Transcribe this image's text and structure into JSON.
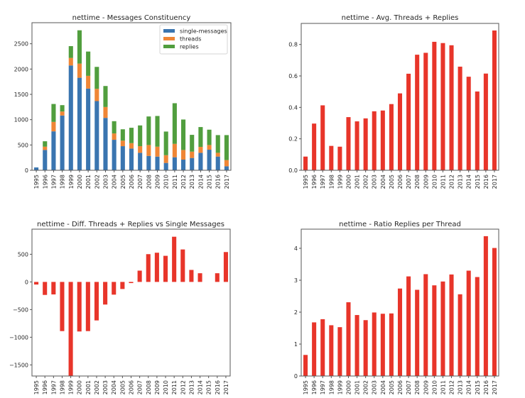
{
  "chart_data": [
    {
      "type": "bar",
      "stacked": true,
      "title": "nettime - Messages Constituency",
      "xlabel": "",
      "ylabel": "",
      "categories": [
        "1995",
        "1996",
        "1997",
        "1998",
        "1999",
        "2000",
        "2001",
        "2002",
        "2003",
        "2004",
        "2005",
        "2006",
        "2007",
        "2008",
        "2009",
        "2010",
        "2011",
        "2012",
        "2013",
        "2014",
        "2015",
        "2016",
        "2017"
      ],
      "series": [
        {
          "name": "single-messages",
          "color": "#3a75b0",
          "values": [
            56,
            401,
            769,
            1082,
            2071,
            1828,
            1614,
            1367,
            1035,
            602,
            476,
            429,
            345,
            284,
            270,
            145,
            257,
            210,
            243,
            345,
            406,
            271,
            79
          ]
        },
        {
          "name": "threads",
          "color": "#ef8636",
          "values": [
            0,
            65,
            187,
            79,
            149,
            280,
            252,
            242,
            215,
            126,
            110,
            107,
            131,
            215,
            196,
            153,
            265,
            191,
            125,
            117,
            93,
            74,
            122
          ]
        },
        {
          "name": "replies",
          "color": "#519e3e",
          "values": [
            0,
            107,
            354,
            126,
            233,
            658,
            480,
            434,
            415,
            242,
            224,
            304,
            410,
            564,
            607,
            467,
            803,
            602,
            332,
            392,
            303,
            350,
            494
          ]
        }
      ],
      "yticks": [
        0,
        500,
        1000,
        1500,
        2000,
        2500
      ],
      "ylim": [
        0,
        2916
      ],
      "legend": "top-right",
      "grid": false
    },
    {
      "type": "bar",
      "title": "nettime - Avg. Threads + Replies",
      "xlabel": "",
      "ylabel": "",
      "color": "#e8352a",
      "categories": [
        "1995",
        "1996",
        "1997",
        "1998",
        "1999",
        "2000",
        "2001",
        "2002",
        "2003",
        "2004",
        "2005",
        "2006",
        "2007",
        "2008",
        "2009",
        "2010",
        "2011",
        "2012",
        "2013",
        "2014",
        "2015",
        "2016",
        "2017"
      ],
      "values": [
        0.087,
        0.297,
        0.413,
        0.155,
        0.15,
        0.338,
        0.311,
        0.33,
        0.375,
        0.38,
        0.421,
        0.489,
        0.614,
        0.735,
        0.747,
        0.817,
        0.809,
        0.795,
        0.659,
        0.595,
        0.501,
        0.615,
        0.889
      ],
      "yticks": [
        0.0,
        0.2,
        0.4,
        0.6,
        0.8
      ],
      "ytick_labels": [
        "0.0",
        "0.2",
        "0.4",
        "0.6",
        "0.8"
      ],
      "ylim": [
        0,
        0.934
      ],
      "grid": false
    },
    {
      "type": "bar",
      "title": "nettime - Diff. Threads + Replies vs Single Messages",
      "xlabel": "",
      "ylabel": "",
      "color": "#e8352a",
      "categories": [
        "1995",
        "1996",
        "1997",
        "1998",
        "1999",
        "2000",
        "2001",
        "2002",
        "2003",
        "2004",
        "2005",
        "2006",
        "2007",
        "2008",
        "2009",
        "2010",
        "2011",
        "2012",
        "2013",
        "2014",
        "2015",
        "2016",
        "2017"
      ],
      "values": [
        -47,
        -235,
        -226,
        -889,
        -1750,
        -896,
        -889,
        -696,
        -409,
        -230,
        -128,
        -21,
        204,
        502,
        528,
        472,
        817,
        587,
        217,
        157,
        0,
        157,
        540
      ],
      "yticks": [
        -1500,
        -1000,
        -500,
        0,
        500
      ],
      "ytick_labels": [
        "−1500",
        "−1000",
        "−500",
        "0",
        "500"
      ],
      "ylim": [
        -1701,
        954
      ],
      "grid": false
    },
    {
      "type": "bar",
      "title": "nettime - Ratio Replies per Thread",
      "xlabel": "",
      "ylabel": "",
      "color": "#e8352a",
      "categories": [
        "1995",
        "1996",
        "1997",
        "1998",
        "1999",
        "2000",
        "2001",
        "2002",
        "2003",
        "2004",
        "2005",
        "2006",
        "2007",
        "2008",
        "2009",
        "2010",
        "2011",
        "2012",
        "2013",
        "2014",
        "2015",
        "2016",
        "2017"
      ],
      "values": [
        0.66,
        1.68,
        1.78,
        1.59,
        1.53,
        2.31,
        1.91,
        1.75,
        1.99,
        1.95,
        1.96,
        2.74,
        3.12,
        2.7,
        3.19,
        2.84,
        2.96,
        3.18,
        2.56,
        3.3,
        3.1,
        4.38,
        4.01
      ],
      "yticks": [
        0,
        1,
        2,
        3,
        4
      ],
      "ytick_labels": [
        "0",
        "1",
        "2",
        "3",
        "4"
      ],
      "ylim": [
        0,
        4.6
      ],
      "grid": false
    }
  ]
}
